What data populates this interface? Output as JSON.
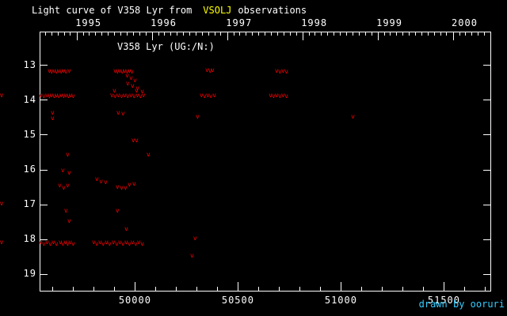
{
  "title": {
    "part1": "Light curve of V358 Lyr from",
    "highlight": "VSOLJ",
    "part2": "observations"
  },
  "plot_label": "V358 Lyr (UG:/N:)",
  "credit": "drawn by ooruri",
  "colors": {
    "background": "#000000",
    "frame": "#ffffff",
    "text": "#ffffff",
    "highlight": "#ffff00",
    "data": "#ff0000",
    "credit": "#33ccff"
  },
  "chart_data": {
    "type": "scatter",
    "title": "Light curve of V358 Lyr from VSOLJ observations",
    "series_label": "V358 Lyr (UG:/N:)",
    "marker": "v",
    "marker_color": "#ff0000",
    "y_inverted": true,
    "x_range_jd": [
      49537,
      51729
    ],
    "y_range_mag": [
      12.03,
      19.49
    ],
    "y_ticks": [
      13,
      14,
      15,
      16,
      17,
      18,
      19
    ],
    "x_ticks_bottom": [
      50000,
      50500,
      51000,
      51500
    ],
    "x_minor_step_days": 100,
    "x_ticks_top": [
      {
        "jd": 49718.5,
        "label": "1995"
      },
      {
        "jd": 50083.5,
        "label": "1996"
      },
      {
        "jd": 50449.5,
        "label": "1997"
      },
      {
        "jd": 50814.5,
        "label": "1998"
      },
      {
        "jd": 51179.5,
        "label": "1999"
      },
      {
        "jd": 51544.5,
        "label": "2000"
      }
    ],
    "edge_marks_mag": [
      13.86,
      16.98,
      18.09
    ],
    "points": [
      [
        49585,
        13.16
      ],
      [
        49596,
        13.18
      ],
      [
        49608,
        13.16
      ],
      [
        49619,
        13.18
      ],
      [
        49631,
        13.16
      ],
      [
        49642,
        13.18
      ],
      [
        49654,
        13.16
      ],
      [
        49665,
        13.18
      ],
      [
        49681,
        13.16
      ],
      [
        49542,
        13.86
      ],
      [
        49558,
        13.88
      ],
      [
        49573,
        13.86
      ],
      [
        49585,
        13.88
      ],
      [
        49596,
        13.86
      ],
      [
        49608,
        13.88
      ],
      [
        49619,
        13.86
      ],
      [
        49631,
        13.88
      ],
      [
        49642,
        13.86
      ],
      [
        49654,
        13.88
      ],
      [
        49665,
        13.86
      ],
      [
        49677,
        13.88
      ],
      [
        49688,
        13.86
      ],
      [
        49700,
        13.88
      ],
      [
        49600,
        14.36
      ],
      [
        49600,
        14.52
      ],
      [
        49673,
        15.56
      ],
      [
        49650,
        16.01
      ],
      [
        49681,
        16.1
      ],
      [
        49635,
        16.46
      ],
      [
        49654,
        16.51
      ],
      [
        49673,
        16.46
      ],
      [
        49665,
        17.17
      ],
      [
        49681,
        17.48
      ],
      [
        49542,
        18.09
      ],
      [
        49558,
        18.12
      ],
      [
        49573,
        18.09
      ],
      [
        49589,
        18.12
      ],
      [
        49604,
        18.09
      ],
      [
        49619,
        18.12
      ],
      [
        49638,
        18.09
      ],
      [
        49650,
        18.12
      ],
      [
        49662,
        18.09
      ],
      [
        49673,
        18.12
      ],
      [
        49685,
        18.09
      ],
      [
        49700,
        18.12
      ],
      [
        49815,
        16.28
      ],
      [
        49835,
        16.33
      ],
      [
        49858,
        16.35
      ],
      [
        49904,
        13.16
      ],
      [
        49915,
        13.18
      ],
      [
        49927,
        13.16
      ],
      [
        49938,
        13.18
      ],
      [
        49950,
        13.16
      ],
      [
        49962,
        13.18
      ],
      [
        49973,
        13.16
      ],
      [
        49985,
        13.18
      ],
      [
        49962,
        13.29
      ],
      [
        49981,
        13.36
      ],
      [
        50000,
        13.43
      ],
      [
        49965,
        13.52
      ],
      [
        49988,
        13.59
      ],
      [
        50012,
        13.66
      ],
      [
        50035,
        13.75
      ],
      [
        49900,
        13.72
      ],
      [
        50008,
        13.72
      ],
      [
        49888,
        13.86
      ],
      [
        49904,
        13.88
      ],
      [
        49919,
        13.86
      ],
      [
        49935,
        13.88
      ],
      [
        49950,
        13.86
      ],
      [
        49965,
        13.88
      ],
      [
        49981,
        13.86
      ],
      [
        49996,
        13.88
      ],
      [
        50012,
        13.86
      ],
      [
        50027,
        13.88
      ],
      [
        50042,
        13.86
      ],
      [
        49919,
        14.36
      ],
      [
        49942,
        14.38
      ],
      [
        49992,
        15.15
      ],
      [
        50008,
        15.15
      ],
      [
        50065,
        15.56
      ],
      [
        49915,
        16.49
      ],
      [
        49935,
        16.53
      ],
      [
        49954,
        16.53
      ],
      [
        49973,
        16.42
      ],
      [
        49996,
        16.4
      ],
      [
        49915,
        17.17
      ],
      [
        49958,
        17.71
      ],
      [
        49800,
        18.09
      ],
      [
        49815,
        18.12
      ],
      [
        49831,
        18.09
      ],
      [
        49846,
        18.12
      ],
      [
        49862,
        18.09
      ],
      [
        49877,
        18.12
      ],
      [
        49896,
        18.09
      ],
      [
        49912,
        18.12
      ],
      [
        49927,
        18.09
      ],
      [
        49942,
        18.12
      ],
      [
        49958,
        18.09
      ],
      [
        49973,
        18.12
      ],
      [
        49988,
        18.09
      ],
      [
        50004,
        18.12
      ],
      [
        50019,
        18.09
      ],
      [
        50035,
        18.12
      ],
      [
        50350,
        13.14
      ],
      [
        50365,
        13.16
      ],
      [
        50377,
        13.14
      ],
      [
        50323,
        13.86
      ],
      [
        50338,
        13.88
      ],
      [
        50354,
        13.86
      ],
      [
        50369,
        13.88
      ],
      [
        50385,
        13.86
      ],
      [
        50304,
        14.47
      ],
      [
        50292,
        17.96
      ],
      [
        50277,
        18.46
      ],
      [
        50688,
        13.16
      ],
      [
        50704,
        13.18
      ],
      [
        50719,
        13.16
      ],
      [
        50735,
        13.18
      ],
      [
        50658,
        13.86
      ],
      [
        50673,
        13.88
      ],
      [
        50688,
        13.86
      ],
      [
        50704,
        13.88
      ],
      [
        50719,
        13.86
      ],
      [
        50735,
        13.88
      ],
      [
        51058,
        14.47
      ]
    ]
  }
}
